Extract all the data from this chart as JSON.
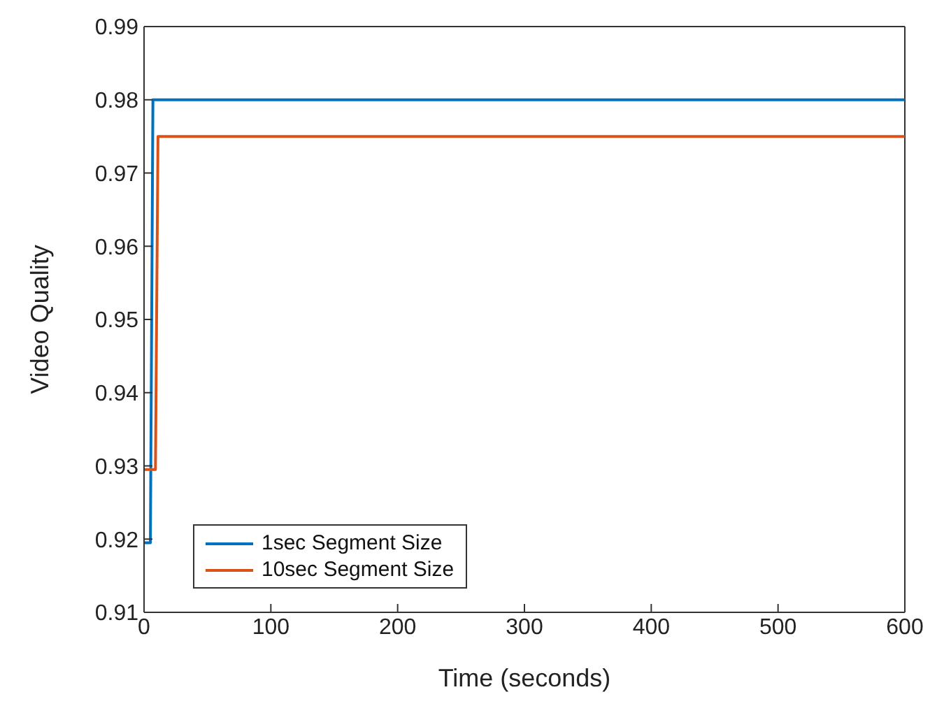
{
  "chart_data": {
    "type": "line",
    "xlabel": "Time (seconds)",
    "ylabel": "Video Quality",
    "xlim": [
      0,
      600
    ],
    "xticks": [
      0,
      100,
      200,
      300,
      400,
      500,
      600
    ],
    "ylim": [
      0.91,
      0.99
    ],
    "yticks": [
      0.91,
      0.92,
      0.93,
      0.94,
      0.95,
      0.96,
      0.97,
      0.98,
      0.99
    ],
    "legend": "bottom left",
    "series": [
      {
        "name": "1sec Segment Size",
        "color": "#0072bd",
        "x": [
          0,
          5,
          7,
          600
        ],
        "values": [
          0.9195,
          0.9195,
          0.98,
          0.98
        ]
      },
      {
        "name": "10sec Segment Size",
        "color": "#d95319",
        "x": [
          0,
          9,
          11,
          600
        ],
        "values": [
          0.9295,
          0.9295,
          0.975,
          0.975
        ]
      }
    ]
  }
}
